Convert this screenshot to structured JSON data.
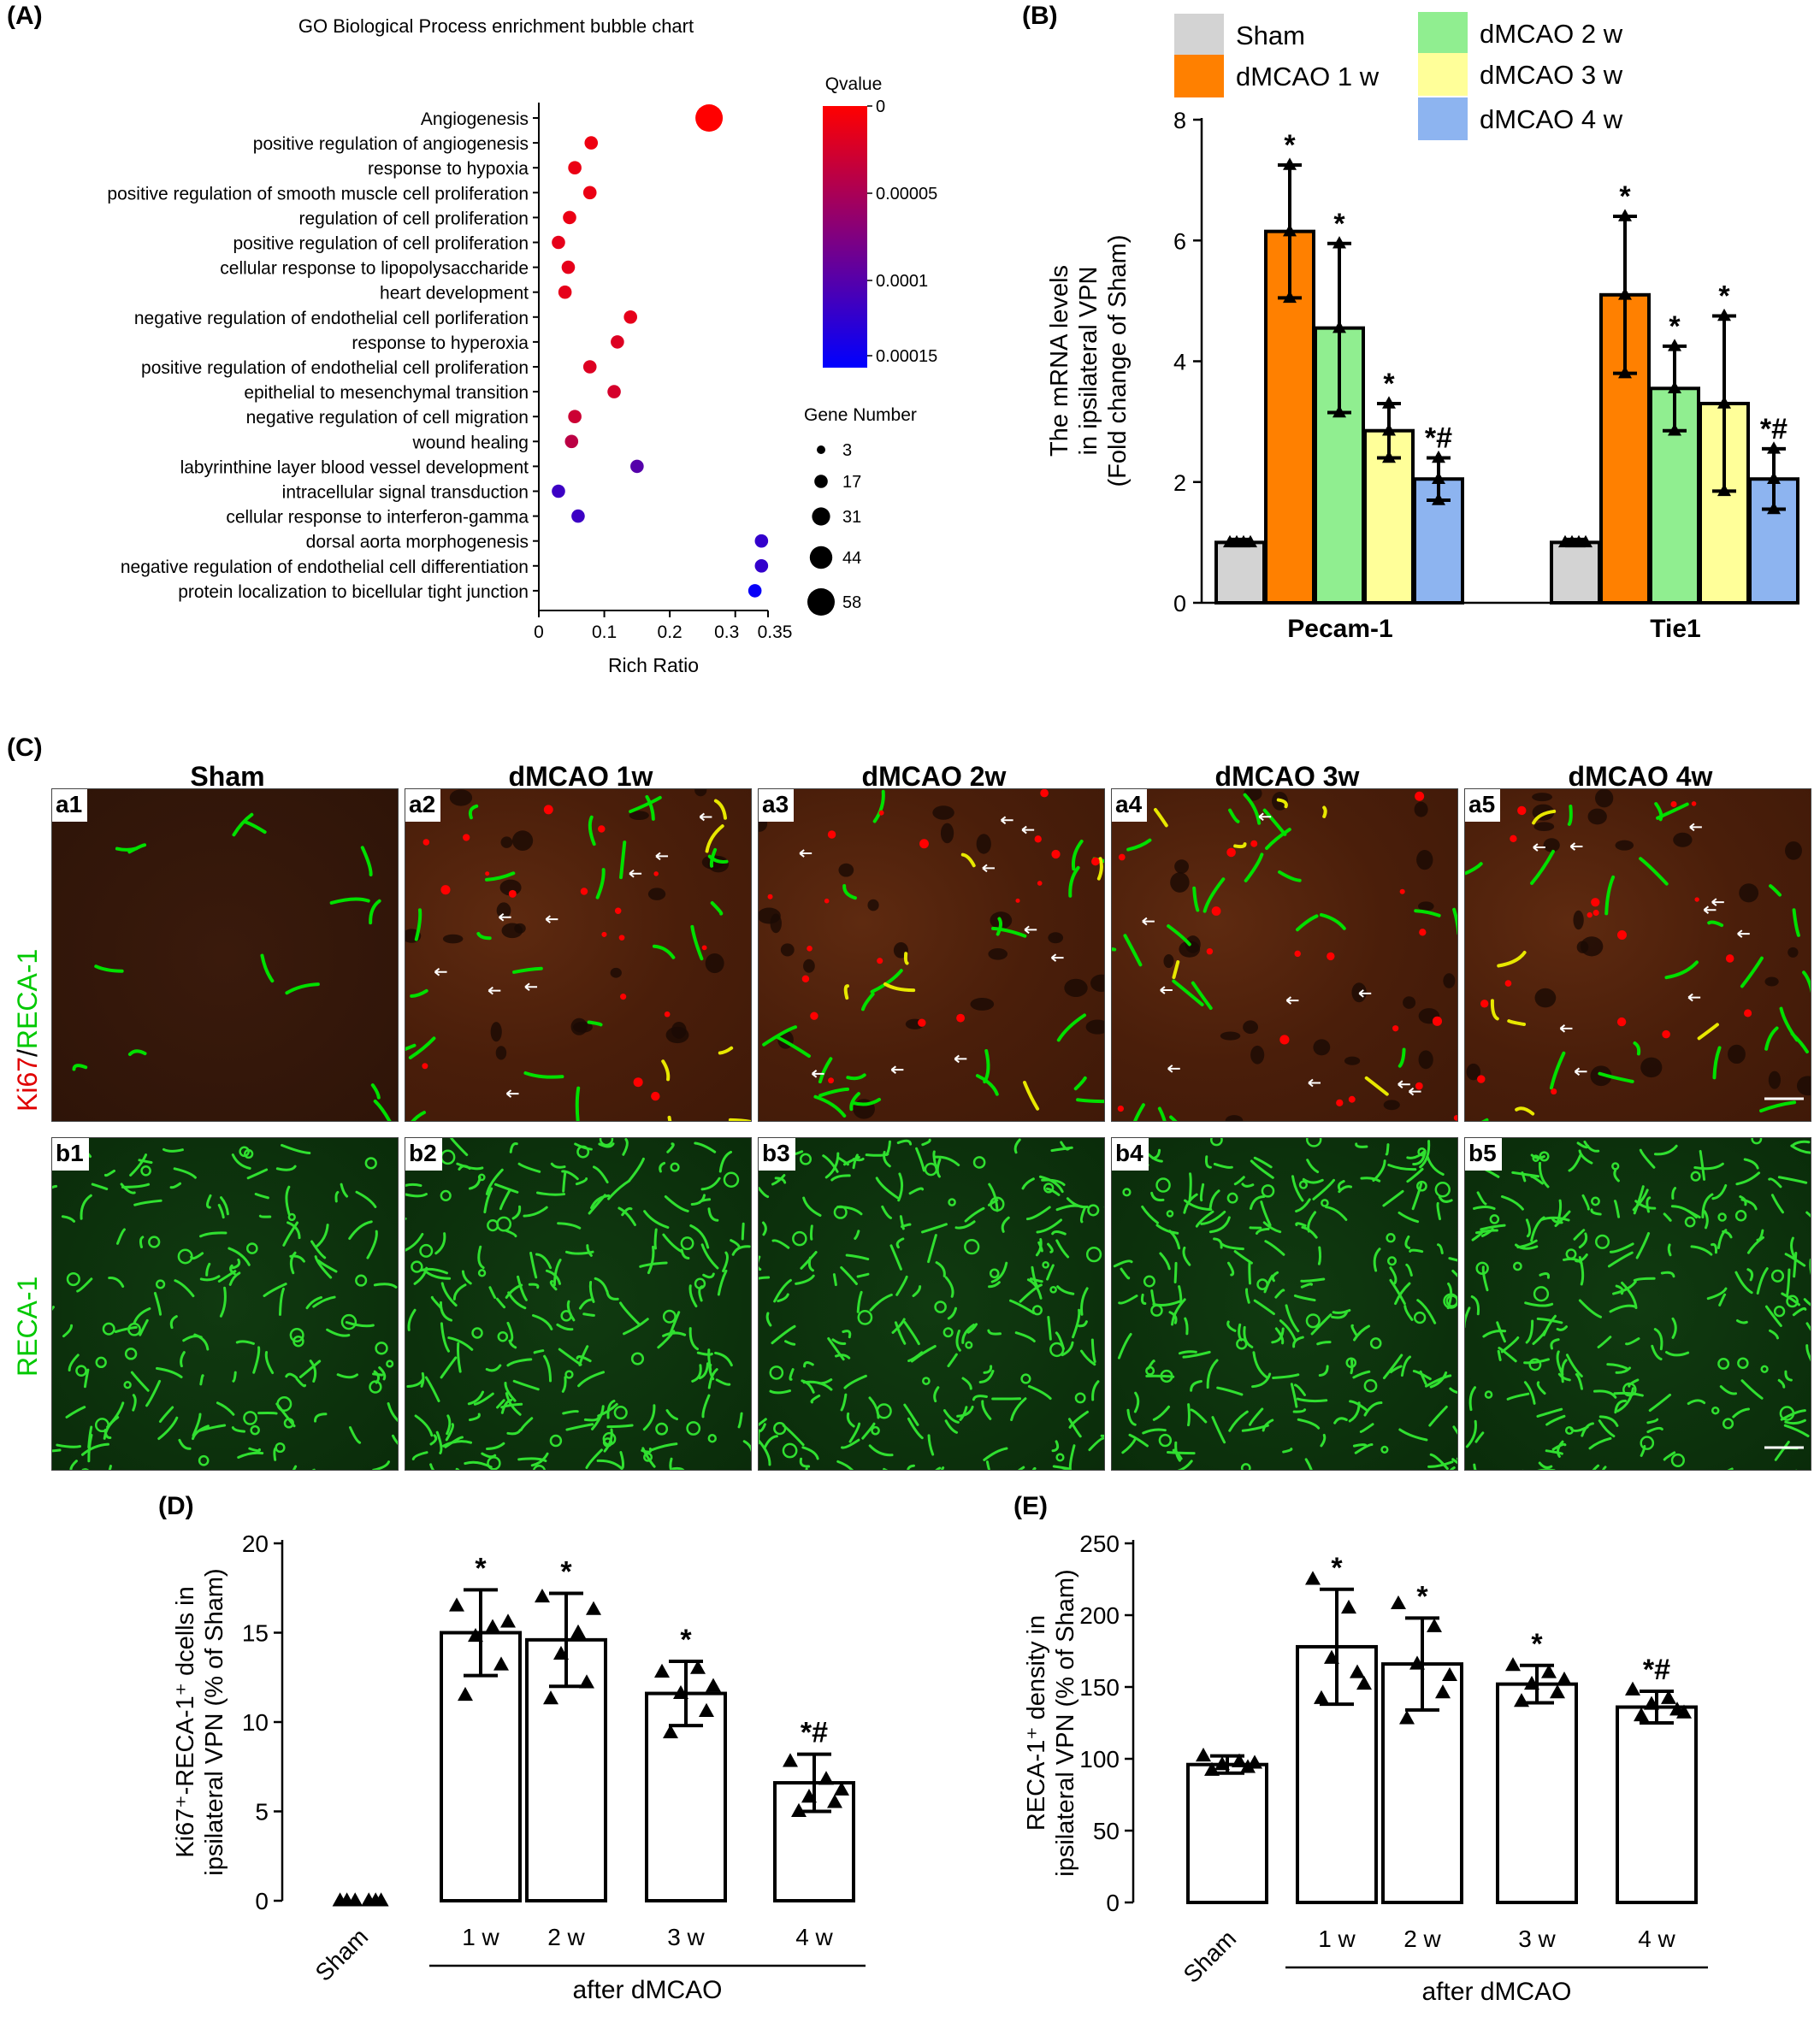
{
  "panels": {
    "A": "(A)",
    "B": "(B)",
    "C": "(C)",
    "D": "(D)",
    "E": "(E)"
  },
  "chart_data": [
    {
      "id": "A",
      "type": "scatter",
      "title": "GO Biological Process enrichment bubble chart",
      "xlabel": "Rich Ratio",
      "ylabel": "",
      "xlim": [
        0,
        0.35
      ],
      "xticks": [
        "0",
        "0.1",
        "0.2",
        "0.3",
        "0.35"
      ],
      "xtick_values": [
        0,
        0.1,
        0.2,
        0.3,
        0.35
      ],
      "categories": [
        "Angiogenesis",
        "positive regulation of angiogenesis",
        "response to hypoxia",
        "positive regulation of smooth muscle cell proliferation",
        "regulation of cell proliferation",
        "positive regulation of cell proliferation",
        "cellular response to lipopolysaccharide",
        "heart development",
        "negative regulation of endothelial cell porliferation",
        "response to hyperoxia",
        "positive regulation of endothelial cell proliferation",
        "epithelial to mesenchymal transition",
        "negative regulation of cell migration",
        "wound healing",
        "labyrinthine layer blood vessel development",
        "intracellular signal transduction",
        "cellular response to interferon-gamma",
        "dorsal aorta morphogenesis",
        "negative regulation of endothelial cell differentiation",
        "protein localization to bicellular tight junction"
      ],
      "rich_ratio": [
        0.26,
        0.08,
        0.055,
        0.078,
        0.047,
        0.03,
        0.045,
        0.04,
        0.14,
        0.12,
        0.078,
        0.115,
        0.055,
        0.05,
        0.15,
        0.03,
        0.06,
        0.34,
        0.34,
        0.33
      ],
      "qvalue": [
        0,
        1e-05,
        1.2e-05,
        1.2e-05,
        1.2e-05,
        1.5e-05,
        1.5e-05,
        1.5e-05,
        1.5e-05,
        2e-05,
        2e-05,
        2.5e-05,
        3e-05,
        4e-05,
        0.0001,
        0.000115,
        0.000115,
        0.00012,
        0.00012,
        0.000145
      ],
      "gene_number": [
        58,
        17,
        17,
        17,
        17,
        17,
        17,
        17,
        17,
        17,
        17,
        17,
        17,
        17,
        17,
        17,
        17,
        17,
        17,
        17
      ],
      "colorbar": {
        "title": "Qvalue",
        "ticks": [
          "0",
          "0.00005",
          "0.0001",
          "0.00015"
        ],
        "low_color": "#ff0000",
        "high_color": "#0000ff"
      },
      "size_legend": {
        "title": "Gene Number",
        "values": [
          "3",
          "17",
          "31",
          "44",
          "58"
        ]
      }
    },
    {
      "id": "B",
      "type": "bar",
      "ylabel_lines": [
        "The mRNA levels",
        "in ipsilateral VPN",
        "(Fold change of Sham)"
      ],
      "categories": [
        "Pecam-1",
        "Tie1"
      ],
      "ylim": [
        0,
        8
      ],
      "yticks": [
        "0",
        "2",
        "4",
        "6",
        "8"
      ],
      "series": [
        {
          "name": "Sham",
          "color": "#d3d3d3",
          "values": [
            1.0,
            1.0
          ],
          "err": [
            0.05,
            0.05
          ],
          "marks": [
            "",
            ""
          ]
        },
        {
          "name": "dMCAO 1 w",
          "color": "#ff8000",
          "values": [
            6.15,
            5.1
          ],
          "err": [
            1.1,
            1.3
          ],
          "marks": [
            "*",
            "*"
          ]
        },
        {
          "name": "dMCAO 2 w",
          "color": "#90ee90",
          "values": [
            4.55,
            3.55
          ],
          "err": [
            1.4,
            0.7
          ],
          "marks": [
            "*",
            "*"
          ]
        },
        {
          "name": "dMCAO 3 w",
          "color": "#ffff99",
          "values": [
            2.85,
            3.3
          ],
          "err": [
            0.45,
            1.45
          ],
          "marks": [
            "*",
            "*"
          ]
        },
        {
          "name": "dMCAO 4 w",
          "color": "#8db4f0",
          "values": [
            2.05,
            2.05
          ],
          "err": [
            0.35,
            0.5
          ],
          "marks": [
            "*#",
            "*#"
          ]
        }
      ]
    },
    {
      "id": "D",
      "type": "bar",
      "ylabel_lines": [
        "Ki67⁺-RECA-1⁺ dcells in",
        "ipsilateral VPN (% of Sham)"
      ],
      "categories": [
        "Sham",
        "1 w",
        "2 w",
        "3 w",
        "4 w"
      ],
      "group_label": "after dMCAO",
      "ylim": [
        0,
        20
      ],
      "yticks": [
        "0",
        "5",
        "10",
        "15",
        "20"
      ],
      "values": [
        0,
        15.0,
        14.6,
        11.6,
        6.6
      ],
      "err": [
        0,
        2.4,
        2.6,
        1.8,
        1.6
      ],
      "marks": [
        "",
        "*",
        "*",
        "*",
        "*#"
      ],
      "points": [
        [
          0,
          0,
          0,
          0,
          0,
          0
        ],
        [
          16.5,
          15.3,
          14.8,
          13.2,
          11.5,
          15.6
        ],
        [
          17.0,
          15.0,
          13.8,
          12.2,
          11.3,
          16.3
        ],
        [
          12.8,
          13.0,
          11.6,
          10.6,
          9.4,
          12.0
        ],
        [
          7.8,
          6.8,
          5.8,
          5.5,
          5.0,
          6.2
        ]
      ]
    },
    {
      "id": "E",
      "type": "bar",
      "ylabel_lines": [
        "RECA-1⁺ density in",
        "ipsilateral VPN (% of Sham)"
      ],
      "categories": [
        "Sham",
        "1 w",
        "2 w",
        "3 w",
        "4 w"
      ],
      "group_label": "after dMCAO",
      "ylim": [
        0,
        250
      ],
      "yticks": [
        "0",
        "50",
        "100",
        "150",
        "200",
        "250"
      ],
      "values": [
        96,
        178,
        166,
        152,
        136
      ],
      "err": [
        6,
        40,
        32,
        13,
        11
      ],
      "marks": [
        "",
        "*",
        "*",
        "*",
        "*#"
      ],
      "points": [
        [
          102,
          98,
          96,
          94,
          92,
          97
        ],
        [
          225,
          205,
          170,
          160,
          142,
          152
        ],
        [
          208,
          192,
          166,
          146,
          128,
          158
        ],
        [
          165,
          160,
          152,
          146,
          140,
          155
        ],
        [
          148,
          142,
          138,
          134,
          130,
          132
        ]
      ]
    }
  ],
  "micrographs": {
    "columns": [
      "Sham",
      "dMCAO 1w",
      "dMCAO 2w",
      "dMCAO 3w",
      "dMCAO 4w"
    ],
    "row_a_labels": [
      "a1",
      "a2",
      "a3",
      "a4",
      "a5"
    ],
    "row_b_labels": [
      "b1",
      "b2",
      "b3",
      "b4",
      "b5"
    ],
    "row_a_stain_1": "Ki67",
    "row_a_stain_sep": "/",
    "row_a_stain_2": "RECA-1",
    "row_b_stain": "RECA-1",
    "stain_colors": {
      "ki67": "#ff0000",
      "reca": "#00e000"
    }
  }
}
